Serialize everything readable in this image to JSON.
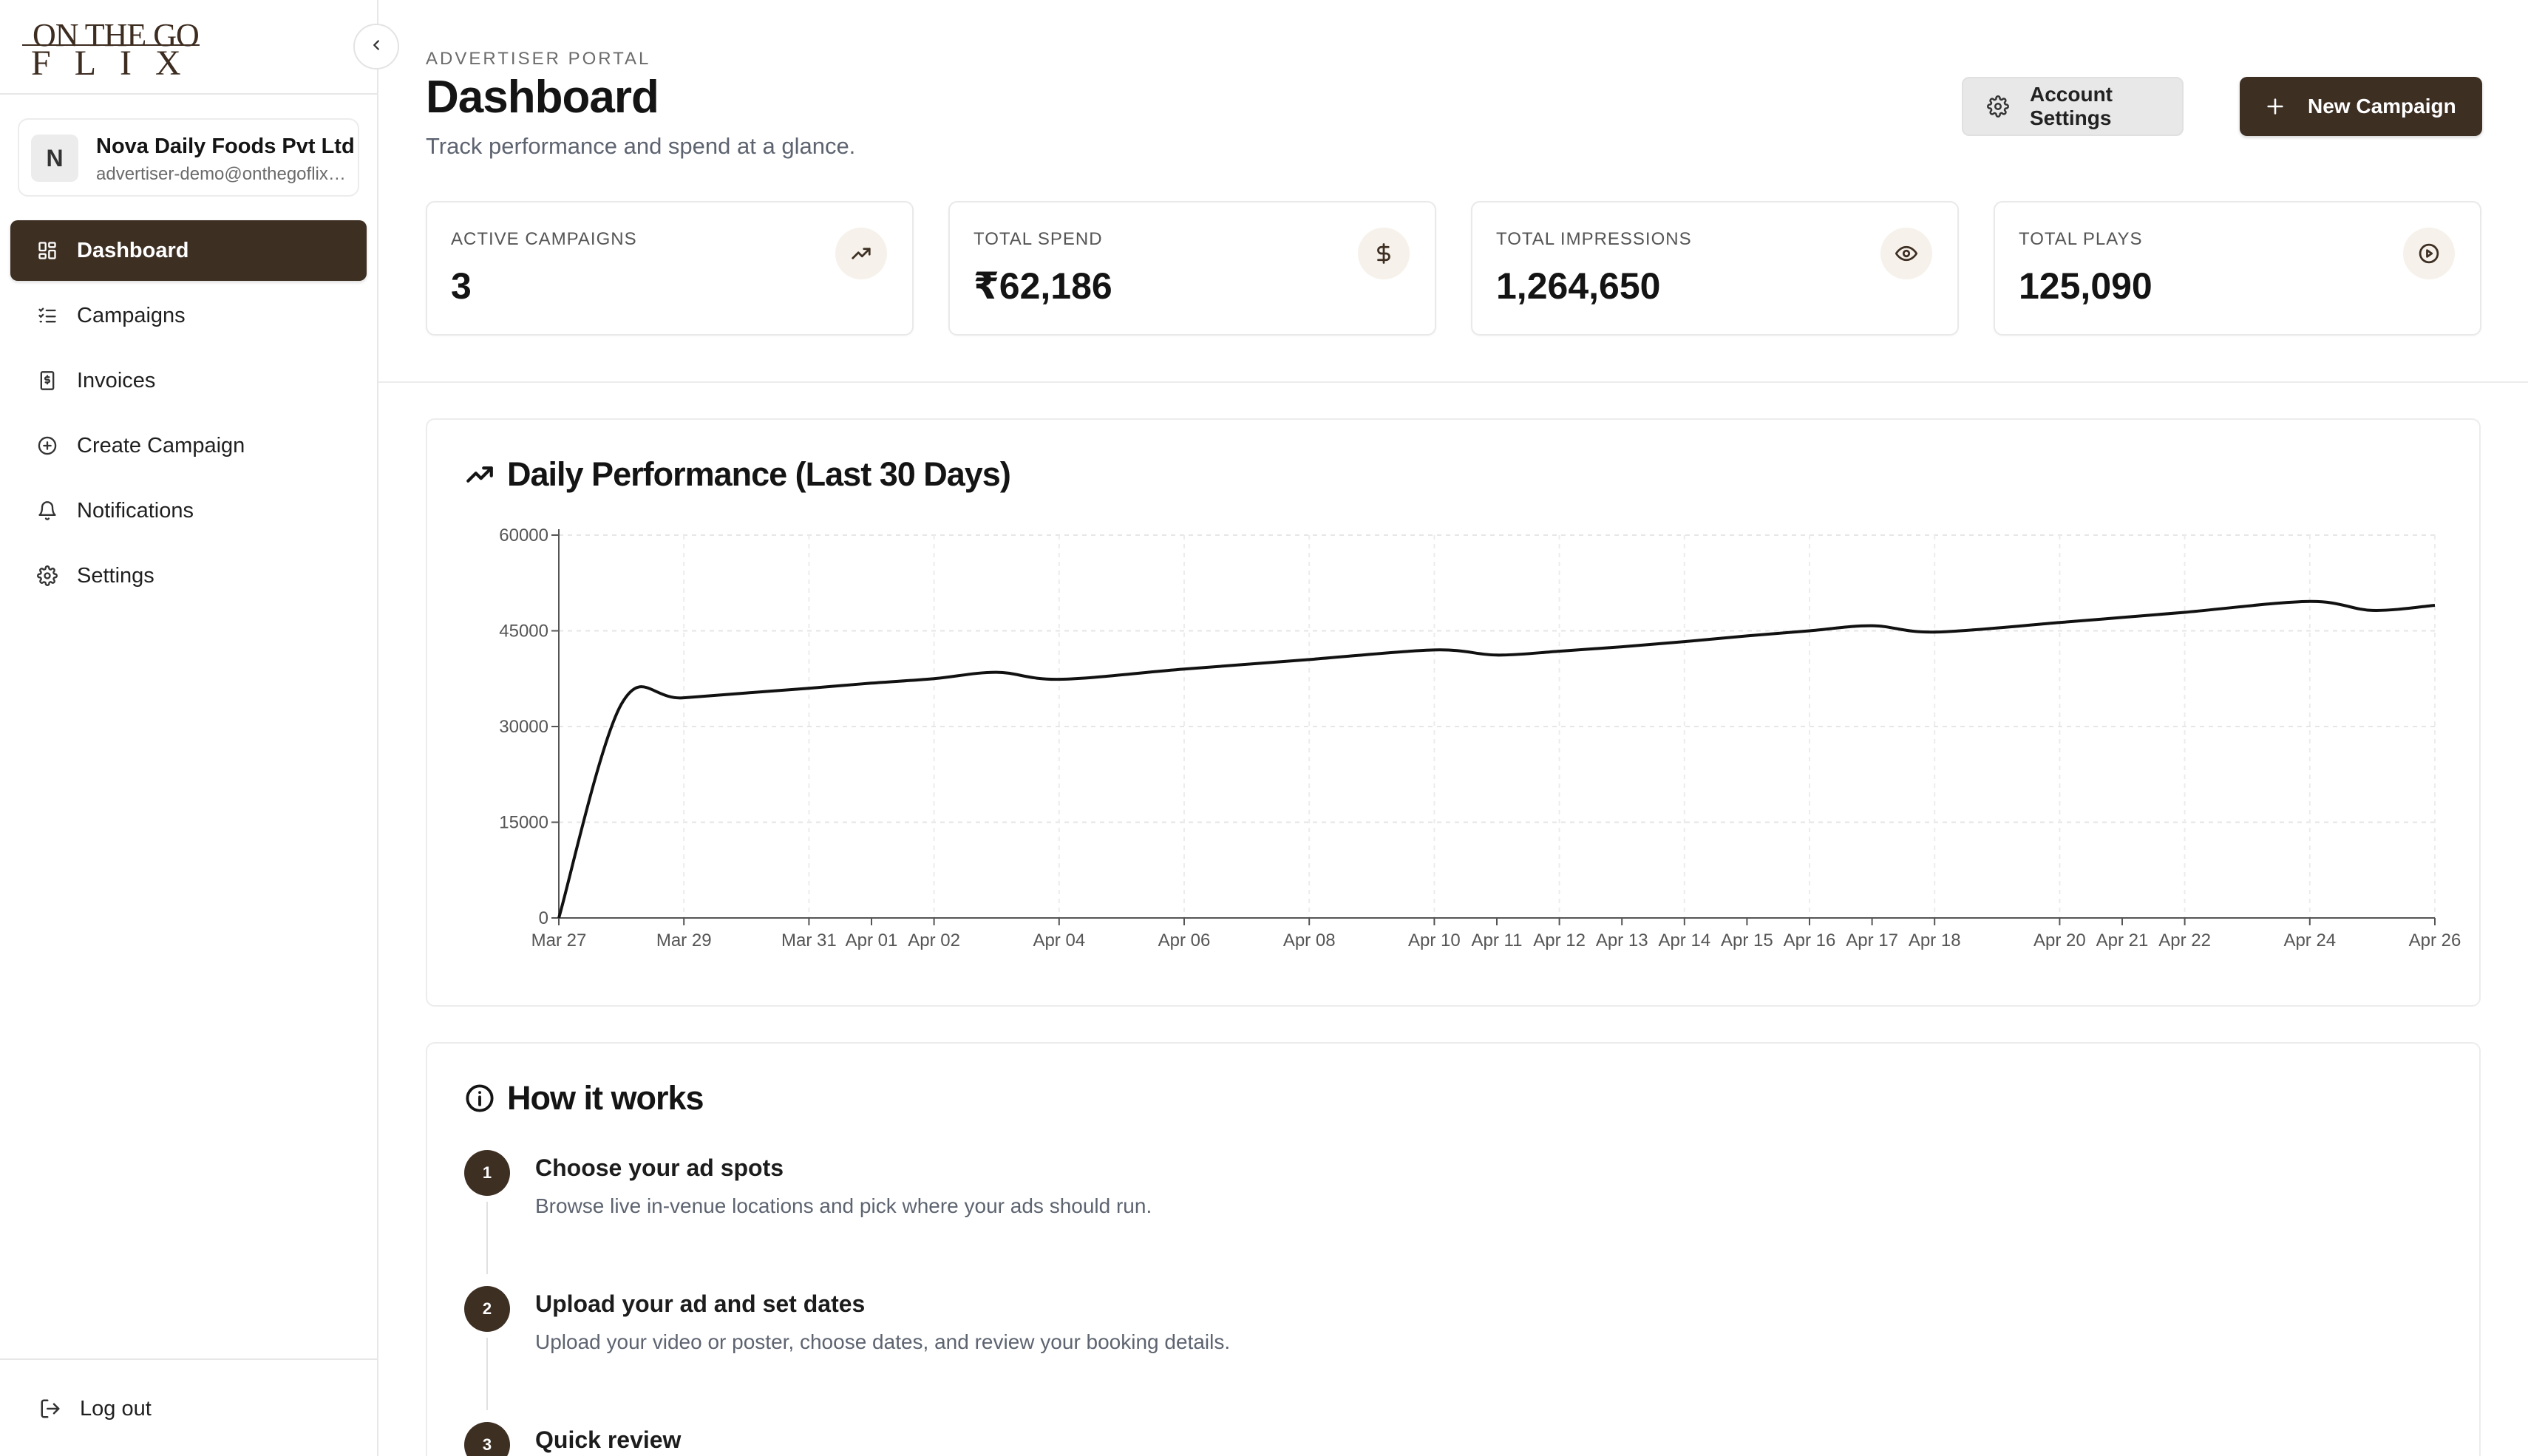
{
  "brand": {
    "line1": "ON THE GO",
    "line2": "FLIX"
  },
  "account": {
    "initial": "N",
    "name": "Nova Daily Foods Pvt Ltd",
    "email": "advertiser-demo@onthegoflix.com"
  },
  "nav": {
    "items": [
      {
        "label": "Dashboard",
        "icon": "grid-icon",
        "active": true
      },
      {
        "label": "Campaigns",
        "icon": "list-check-icon",
        "active": false
      },
      {
        "label": "Invoices",
        "icon": "receipt-icon",
        "active": false
      },
      {
        "label": "Create Campaign",
        "icon": "plus-circle-icon",
        "active": false
      },
      {
        "label": "Notifications",
        "icon": "bell-icon",
        "active": false
      },
      {
        "label": "Settings",
        "icon": "gear-icon",
        "active": false
      }
    ],
    "logout": "Log out"
  },
  "header": {
    "eyebrow": "ADVERTISER PORTAL",
    "title": "Dashboard",
    "subtitle": "Track performance and spend at a glance.",
    "settings_label": "Account Settings",
    "new_label": "New Campaign"
  },
  "stats": [
    {
      "label": "ACTIVE CAMPAIGNS",
      "value": "3",
      "icon": "trending-up-icon"
    },
    {
      "label": "TOTAL SPEND",
      "value": "₹62,186",
      "icon": "dollar-icon"
    },
    {
      "label": "TOTAL IMPRESSIONS",
      "value": "1,264,650",
      "icon": "eye-icon"
    },
    {
      "label": "TOTAL PLAYS",
      "value": "125,090",
      "icon": "play-circle-icon"
    }
  ],
  "chart_title": "Daily Performance (Last 30 Days)",
  "chart_data": {
    "type": "line",
    "title": "Daily Performance (Last 30 Days)",
    "xlabel": "",
    "ylabel": "",
    "ylim": [
      0,
      60000
    ],
    "yticks": [
      0,
      15000,
      30000,
      45000,
      60000
    ],
    "grid": true,
    "x": [
      "2025-03-27",
      "2025-03-28",
      "2025-03-29",
      "2025-03-31",
      "2025-04-01",
      "2025-04-02",
      "2025-04-03",
      "2025-04-04",
      "2025-04-06",
      "2025-04-08",
      "2025-04-10",
      "2025-04-11",
      "2025-04-12",
      "2025-04-13",
      "2025-04-14",
      "2025-04-15",
      "2025-04-16",
      "2025-04-17",
      "2025-04-18",
      "2025-04-20",
      "2025-04-21",
      "2025-04-22",
      "2025-04-24",
      "2025-04-25",
      "2025-04-26"
    ],
    "tick_labels": [
      "Mar 27",
      "Mar 29",
      "Mar 31",
      "Apr 01",
      "Apr 02",
      "Apr 04",
      "Apr 06",
      "Apr 08",
      "Apr 10",
      "Apr 11",
      "Apr 12",
      "Apr 13",
      "Apr 14",
      "Apr 15",
      "Apr 16",
      "Apr 17",
      "Apr 18",
      "Apr 20",
      "Apr 21",
      "Apr 22",
      "Apr 24",
      "Apr 26"
    ],
    "tick_dates": [
      "2025-03-27",
      "2025-03-29",
      "2025-03-31",
      "2025-04-01",
      "2025-04-02",
      "2025-04-04",
      "2025-04-06",
      "2025-04-08",
      "2025-04-10",
      "2025-04-11",
      "2025-04-12",
      "2025-04-13",
      "2025-04-14",
      "2025-04-15",
      "2025-04-16",
      "2025-04-17",
      "2025-04-18",
      "2025-04-20",
      "2025-04-21",
      "2025-04-22",
      "2025-04-24",
      "2025-04-26"
    ],
    "series": [
      {
        "values": [
          0,
          33500,
          34500,
          36000,
          36800,
          37500,
          38500,
          37400,
          39000,
          40500,
          42000,
          41200,
          41800,
          42500,
          43300,
          44200,
          45000,
          45800,
          44800,
          46300,
          47100,
          47900,
          49600,
          48200,
          49000
        ]
      }
    ]
  },
  "how": {
    "title": "How it works",
    "steps": [
      {
        "num": "1",
        "title": "Choose your ad spots",
        "desc": "Browse live in-venue locations and pick where your ads should run."
      },
      {
        "num": "2",
        "title": "Upload your ad and set dates",
        "desc": "Upload your video or poster, choose dates, and review your booking details."
      },
      {
        "num": "3",
        "title": "Quick review",
        "desc": ""
      }
    ]
  },
  "colors": {
    "brand_brown": "#3e2f23",
    "line": "#111111"
  }
}
